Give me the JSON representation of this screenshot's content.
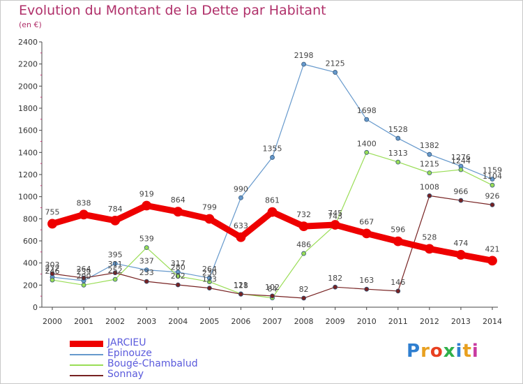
{
  "header": {
    "title": "Evolution du Montant de la Dette par Habitant",
    "unit": "(en €)"
  },
  "logo": {
    "letters": [
      "P",
      "r",
      "o",
      "x",
      "i",
      "t",
      "i"
    ],
    "colors": [
      "#2f7fd0",
      "#e8a020",
      "#e84020",
      "#2fb04a",
      "#2f7fd0",
      "#e8a020",
      "#c83aa0"
    ]
  },
  "chart_data": {
    "type": "line",
    "x": [
      "2000",
      "2001",
      "2002",
      "2003",
      "2004",
      "2005",
      "2006",
      "2007",
      "2008",
      "2009",
      "2010",
      "2011",
      "2012",
      "2013",
      "2014"
    ],
    "ylim": [
      0,
      2400
    ],
    "yticks": [
      0,
      200,
      400,
      600,
      800,
      1000,
      1200,
      1400,
      1600,
      1800,
      2000,
      2200,
      2400
    ],
    "grid": false,
    "legend_position": "bottom-left",
    "series": [
      {
        "name": "JARCIEU",
        "color": "#ee0000",
        "emphasis": true,
        "values": [
          755,
          838,
          784,
          919,
          864,
          799,
          633,
          861,
          732,
          745,
          667,
          596,
          528,
          474,
          421
        ],
        "labels": [
          "755",
          "838",
          "784",
          "919",
          "864",
          "799",
          "633",
          "861",
          "732",
          "745",
          "667",
          "596",
          "528",
          "474",
          "421"
        ]
      },
      {
        "name": "Epinouze",
        "color": "#6699cc",
        "values": [
          272,
          239,
          395,
          337,
          317,
          264,
          990,
          1355,
          2198,
          2125,
          1698,
          1528,
          1382,
          1276,
          1159
        ],
        "labels": [
          "272",
          "239",
          "395",
          "337",
          "317",
          "264",
          "990",
          "1355",
          "2198",
          "2125",
          "1698",
          "1528",
          "1382",
          "1276",
          "1159"
        ]
      },
      {
        "name": "Bougé-Chambalud",
        "color": "#99dd55",
        "values": [
          246,
          200,
          252,
          539,
          280,
          230,
          121,
          84,
          486,
          743,
          1400,
          1313,
          1215,
          1244,
          1104
        ],
        "labels": [
          "246",
          "200",
          "252",
          "539",
          "280",
          "230",
          "121",
          "84",
          "486",
          "743",
          "1400",
          "1313",
          "1215",
          "1244",
          "1104"
        ]
      },
      {
        "name": "Sonnay",
        "color": "#772222",
        "values": [
          303,
          264,
          311,
          233,
          202,
          173,
          118,
          102,
          82,
          182,
          163,
          146,
          1008,
          966,
          926
        ],
        "labels": [
          "303",
          "264",
          "311",
          "233",
          "202",
          "173",
          "118",
          "102",
          "82",
          "182",
          "163",
          "146",
          "1008",
          "966",
          "926"
        ]
      }
    ]
  }
}
